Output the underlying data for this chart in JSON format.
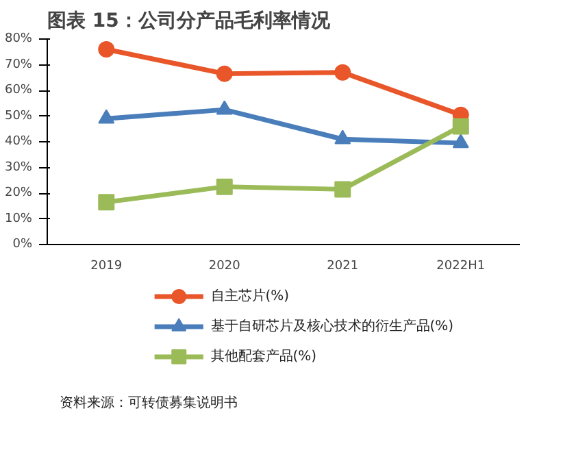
{
  "chart_data": {
    "type": "line",
    "title": "图表 15：公司分产品毛利率情况",
    "categories": [
      "2019",
      "2020",
      "2021",
      "2022H1"
    ],
    "series": [
      {
        "name": "自主芯片(%)",
        "color": "#e8562a",
        "marker": "circle",
        "values": [
          76,
          66.5,
          67,
          50.5
        ]
      },
      {
        "name": "基于自研芯片及核心技术的衍生产品(%)",
        "color": "#4a7ebb",
        "marker": "triangle",
        "values": [
          49,
          52.5,
          41,
          39.5
        ]
      },
      {
        "name": "其他配套产品(%)",
        "color": "#9bbb59",
        "marker": "square",
        "values": [
          16.5,
          22.5,
          21.5,
          46
        ]
      }
    ],
    "ylim": [
      0,
      80
    ],
    "yticks": [
      {
        "value": 0,
        "label": "0%"
      },
      {
        "value": 10,
        "label": "10%"
      },
      {
        "value": 20,
        "label": "20%"
      },
      {
        "value": 30,
        "label": "30%"
      },
      {
        "value": 40,
        "label": "40%"
      },
      {
        "value": 50,
        "label": "50%"
      },
      {
        "value": 60,
        "label": "60%"
      },
      {
        "value": 70,
        "label": "70%"
      },
      {
        "value": 80,
        "label": "80%"
      }
    ],
    "grid": false,
    "legend": "bottom",
    "line_style": "solid",
    "annotations": [
      "资料来源：可转债募集说明书"
    ]
  }
}
